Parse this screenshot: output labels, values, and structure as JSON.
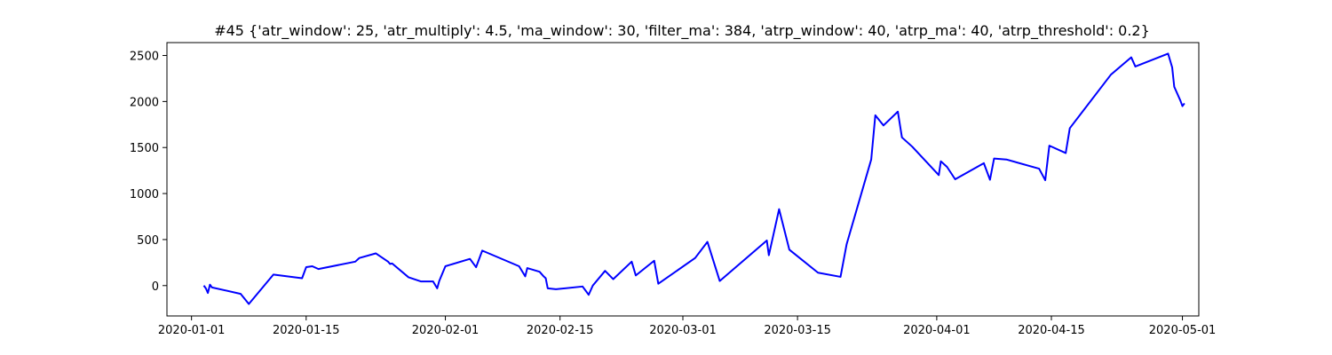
{
  "chart_data": {
    "type": "line",
    "title": "#45 {'atr_window': 25, 'atr_multiply': 4.5, 'ma_window': 30, 'filter_ma': 384, 'atrp_window': 40, 'atrp_ma': 40, 'atrp_threshold': 0.2}",
    "xlabel": "",
    "ylabel": "",
    "x_range": [
      "2019-12-29",
      "2020-05-03"
    ],
    "ylim": [
      -330,
      2640
    ],
    "x_ticks": [
      {
        "date": "2020-01-01",
        "label": "2020-01-01"
      },
      {
        "date": "2020-01-15",
        "label": "2020-01-15"
      },
      {
        "date": "2020-02-01",
        "label": "2020-02-01"
      },
      {
        "date": "2020-02-15",
        "label": "2020-02-15"
      },
      {
        "date": "2020-03-01",
        "label": "2020-03-01"
      },
      {
        "date": "2020-03-15",
        "label": "2020-03-15"
      },
      {
        "date": "2020-04-01",
        "label": "2020-04-01"
      },
      {
        "date": "2020-04-15",
        "label": "2020-04-15"
      },
      {
        "date": "2020-05-01",
        "label": "2020-05-01"
      }
    ],
    "y_ticks": [
      0,
      500,
      1000,
      1500,
      2000,
      2500
    ],
    "grid": false,
    "series": [
      {
        "color": "#0000ff",
        "points": [
          [
            "2020-01-02 12:00",
            0
          ],
          [
            "2020-01-02 18:00",
            -30
          ],
          [
            "2020-01-03 00:00",
            -80
          ],
          [
            "2020-01-03 06:00",
            10
          ],
          [
            "2020-01-03 12:00",
            -20
          ],
          [
            "2020-01-07 00:00",
            -90
          ],
          [
            "2020-01-08 00:00",
            -200
          ],
          [
            "2020-01-11 00:00",
            120
          ],
          [
            "2020-01-14 12:00",
            80
          ],
          [
            "2020-01-15 00:00",
            200
          ],
          [
            "2020-01-15 18:00",
            210
          ],
          [
            "2020-01-16 12:00",
            180
          ],
          [
            "2020-01-21 00:00",
            260
          ],
          [
            "2020-01-21 12:00",
            300
          ],
          [
            "2020-01-23 12:00",
            350
          ],
          [
            "2020-01-25 00:00",
            260
          ],
          [
            "2020-01-25 06:00",
            235
          ],
          [
            "2020-01-25 12:00",
            240
          ],
          [
            "2020-01-27 12:00",
            90
          ],
          [
            "2020-01-29 00:00",
            45
          ],
          [
            "2020-01-30 12:00",
            45
          ],
          [
            "2020-01-31 00:00",
            -30
          ],
          [
            "2020-01-31 06:00",
            50
          ],
          [
            "2020-02-01 00:00",
            210
          ],
          [
            "2020-02-04 00:00",
            290
          ],
          [
            "2020-02-04 18:00",
            200
          ],
          [
            "2020-02-05 12:00",
            380
          ],
          [
            "2020-02-10 00:00",
            210
          ],
          [
            "2020-02-10 18:00",
            100
          ],
          [
            "2020-02-11 00:00",
            190
          ],
          [
            "2020-02-12 12:00",
            150
          ],
          [
            "2020-02-13 00:00",
            100
          ],
          [
            "2020-02-13 06:00",
            80
          ],
          [
            "2020-02-13 12:00",
            -30
          ],
          [
            "2020-02-14 12:00",
            -40
          ],
          [
            "2020-02-17 18:00",
            -10
          ],
          [
            "2020-02-18 12:00",
            -100
          ],
          [
            "2020-02-19 00:00",
            0
          ],
          [
            "2020-02-20 12:00",
            160
          ],
          [
            "2020-02-21 12:00",
            70
          ],
          [
            "2020-02-23 18:00",
            260
          ],
          [
            "2020-02-24 06:00",
            110
          ],
          [
            "2020-02-26 12:00",
            270
          ],
          [
            "2020-02-27 00:00",
            20
          ],
          [
            "2020-03-02 12:00",
            300
          ],
          [
            "2020-03-04 00:00",
            475
          ],
          [
            "2020-03-05 12:00",
            50
          ],
          [
            "2020-03-11 06:00",
            490
          ],
          [
            "2020-03-11 12:00",
            330
          ],
          [
            "2020-03-12 18:00",
            830
          ],
          [
            "2020-03-14 00:00",
            390
          ],
          [
            "2020-03-17 12:00",
            140
          ],
          [
            "2020-03-20 06:00",
            95
          ],
          [
            "2020-03-21 00:00",
            450
          ],
          [
            "2020-03-24 00:00",
            1370
          ],
          [
            "2020-03-24 12:00",
            1850
          ],
          [
            "2020-03-25 12:00",
            1740
          ],
          [
            "2020-03-27 06:00",
            1890
          ],
          [
            "2020-03-27 18:00",
            1610
          ],
          [
            "2020-03-29 00:00",
            1510
          ],
          [
            "2020-04-01 06:00",
            1200
          ],
          [
            "2020-04-01 12:00",
            1350
          ],
          [
            "2020-04-02 06:00",
            1290
          ],
          [
            "2020-04-03 06:00",
            1155
          ],
          [
            "2020-04-06 18:00",
            1330
          ],
          [
            "2020-04-07 12:00",
            1150
          ],
          [
            "2020-04-08 00:00",
            1380
          ],
          [
            "2020-04-09 12:00",
            1370
          ],
          [
            "2020-04-13 12:00",
            1270
          ],
          [
            "2020-04-14 06:00",
            1145
          ],
          [
            "2020-04-14 18:00",
            1520
          ],
          [
            "2020-04-16 18:00",
            1440
          ],
          [
            "2020-04-17 06:00",
            1710
          ],
          [
            "2020-04-22 06:00",
            2290
          ],
          [
            "2020-04-24 18:00",
            2480
          ],
          [
            "2020-04-25 06:00",
            2380
          ],
          [
            "2020-04-29 06:00",
            2520
          ],
          [
            "2020-04-29 18:00",
            2370
          ],
          [
            "2020-04-30 00:00",
            2160
          ],
          [
            "2020-04-30 18:00",
            2010
          ],
          [
            "2020-05-01 00:00",
            1950
          ],
          [
            "2020-05-01 06:00",
            1980
          ]
        ]
      }
    ]
  }
}
